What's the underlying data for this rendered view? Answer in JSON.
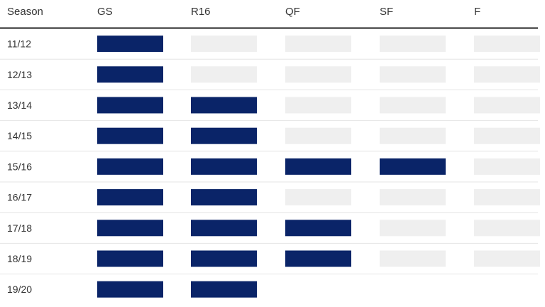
{
  "chart_data": {
    "type": "table",
    "header_label": "Season",
    "stages": [
      "GS",
      "R16",
      "QF",
      "SF",
      "F"
    ],
    "rows": [
      {
        "season": "11/12",
        "reached": [
          1,
          0,
          0,
          0,
          0
        ]
      },
      {
        "season": "12/13",
        "reached": [
          1,
          0,
          0,
          0,
          0
        ]
      },
      {
        "season": "13/14",
        "reached": [
          1,
          1,
          0,
          0,
          0
        ]
      },
      {
        "season": "14/15",
        "reached": [
          1,
          1,
          0,
          0,
          0
        ]
      },
      {
        "season": "15/16",
        "reached": [
          1,
          1,
          1,
          1,
          0
        ]
      },
      {
        "season": "16/17",
        "reached": [
          1,
          1,
          0,
          0,
          0
        ]
      },
      {
        "season": "17/18",
        "reached": [
          1,
          1,
          1,
          0,
          0
        ]
      },
      {
        "season": "18/19",
        "reached": [
          1,
          1,
          1,
          0,
          0
        ]
      },
      {
        "season": "19/20",
        "reached": [
          1,
          1,
          null,
          null,
          null
        ]
      }
    ],
    "colors": {
      "reached": "#0a2468",
      "not_reached": "#efefef",
      "header_rule": "#222222",
      "row_rule": "#e4e4e4"
    }
  }
}
